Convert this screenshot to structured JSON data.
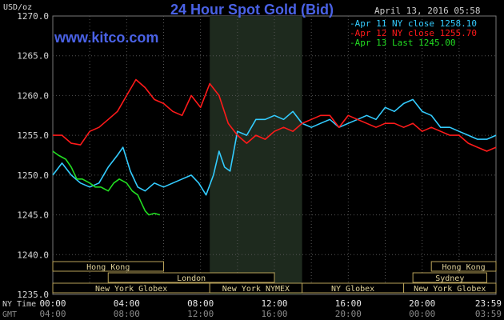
{
  "header": {
    "title": "24 Hour Spot Gold (Bid)",
    "timestamp": "April 13, 2016 05:58",
    "brand": "www.kitco.com",
    "unit": "USD/oz"
  },
  "legend": [
    {
      "text": "-Apr 11 NY close 1258.10",
      "color": "#33ccff"
    },
    {
      "text": "-Apr 12 NY close 1255.70",
      "color": "#ff1a1a"
    },
    {
      "text": "-Apr 13 Last 1245.00",
      "color": "#22dd22"
    }
  ],
  "sessions": {
    "row1": [
      {
        "label": "Hong Kong",
        "from": 0,
        "to": 6
      },
      {
        "label": "Hong Kong",
        "from": 20.5,
        "to": 24
      }
    ],
    "row2": [
      {
        "label": "London",
        "from": 3,
        "to": 12
      },
      {
        "label": "Sydney",
        "from": 19.5,
        "to": 23.5
      }
    ],
    "row3": [
      {
        "label": "New York Globex",
        "from": 0,
        "to": 8.5
      },
      {
        "label": "New York NYMEX",
        "from": 8.5,
        "to": 13.5
      },
      {
        "label": "NY Globex",
        "from": 13.5,
        "to": 19
      },
      {
        "label": "New York Globex",
        "from": 19,
        "to": 24
      }
    ]
  },
  "time_rows": {
    "ny_label": "NY Time",
    "gmt_label": "GMT",
    "ny_ticks": [
      "00:00",
      "04:00",
      "08:00",
      "12:00",
      "16:00",
      "20:00",
      "23:59"
    ],
    "gmt_ticks": [
      "04:00",
      "08:00",
      "12:00",
      "16:00",
      "20:00",
      "00:00",
      "03:59"
    ]
  },
  "chart_data": {
    "type": "line",
    "title": "24 Hour Spot Gold (Bid)",
    "xlabel": "NY Time",
    "ylabel": "USD/oz",
    "ylim": [
      1235,
      1270
    ],
    "xlim": [
      0,
      24
    ],
    "yticks": [
      1235,
      1240,
      1245,
      1250,
      1255,
      1260,
      1265,
      1270
    ],
    "ytick_labels": [
      "1235.0",
      "1240.0",
      "1245.0",
      "1250.0",
      "1255.0",
      "1260.0",
      "1265.0",
      "1270.0"
    ],
    "shaded_x_range": [
      8.5,
      13.5
    ],
    "grid": true,
    "series": [
      {
        "name": "Apr 11",
        "color": "#33ccff",
        "x": [
          0,
          0.5,
          1,
          1.5,
          2,
          2.5,
          3,
          3.5,
          3.8,
          4.2,
          4.6,
          5,
          5.5,
          6,
          6.5,
          7,
          7.5,
          7.9,
          8.3,
          8.7,
          9,
          9.3,
          9.6,
          10,
          10.5,
          11,
          11.5,
          12,
          12.5,
          13,
          13.5,
          14,
          14.5,
          15,
          15.5,
          16,
          16.5,
          17,
          17.5,
          18,
          18.5,
          19,
          19.5,
          20,
          20.5,
          21,
          21.5,
          22,
          22.5,
          23,
          23.5,
          24
        ],
        "y": [
          1250.0,
          1251.5,
          1250.0,
          1249.0,
          1248.5,
          1249.0,
          1251.0,
          1252.5,
          1253.5,
          1250.5,
          1248.5,
          1248.0,
          1249.0,
          1248.5,
          1249.0,
          1249.5,
          1250.0,
          1249.0,
          1247.5,
          1250.0,
          1253.0,
          1251.0,
          1250.5,
          1255.5,
          1255.0,
          1257.0,
          1257.0,
          1257.5,
          1257.0,
          1258.0,
          1256.5,
          1256.0,
          1256.5,
          1257.0,
          1256.0,
          1256.5,
          1257.0,
          1257.5,
          1257.0,
          1258.5,
          1258.0,
          1259.0,
          1259.5,
          1258.0,
          1257.5,
          1256.0,
          1256.0,
          1255.5,
          1255.0,
          1254.5,
          1254.5,
          1255.0
        ]
      },
      {
        "name": "Apr 12",
        "color": "#ff1a1a",
        "x": [
          0,
          0.5,
          1,
          1.5,
          2,
          2.5,
          3,
          3.5,
          4,
          4.5,
          5,
          5.5,
          6,
          6.5,
          7,
          7.5,
          8,
          8.5,
          9,
          9.5,
          10,
          10.5,
          11,
          11.5,
          12,
          12.5,
          13,
          13.5,
          14,
          14.5,
          15,
          15.5,
          16,
          16.5,
          17,
          17.5,
          18,
          18.5,
          19,
          19.5,
          20,
          20.5,
          21,
          21.5,
          22,
          22.5,
          23,
          23.5,
          24
        ],
        "y": [
          1255.0,
          1255.0,
          1254.0,
          1253.8,
          1255.5,
          1256.0,
          1257.0,
          1258.0,
          1260.0,
          1262.0,
          1261.0,
          1259.5,
          1259.0,
          1258.0,
          1257.5,
          1260.0,
          1258.5,
          1261.5,
          1260.0,
          1256.5,
          1255.0,
          1254.0,
          1255.0,
          1254.5,
          1255.5,
          1256.0,
          1255.5,
          1256.5,
          1257.0,
          1257.5,
          1257.5,
          1256.0,
          1257.5,
          1257.0,
          1256.5,
          1256.0,
          1256.5,
          1256.5,
          1256.0,
          1256.5,
          1255.5,
          1256.0,
          1255.5,
          1255.0,
          1255.0,
          1254.0,
          1253.5,
          1253.0,
          1253.5
        ]
      },
      {
        "name": "Apr 13",
        "color": "#22dd22",
        "x": [
          0,
          0.3,
          0.7,
          1,
          1.3,
          1.6,
          2,
          2.3,
          2.6,
          3,
          3.3,
          3.6,
          4,
          4.3,
          4.6,
          4.8,
          5,
          5.2,
          5.5,
          5.8
        ],
        "y": [
          1253.0,
          1252.5,
          1252.0,
          1251.0,
          1249.5,
          1249.5,
          1249.0,
          1248.5,
          1248.5,
          1248.0,
          1249.0,
          1249.5,
          1249.0,
          1248.0,
          1247.5,
          1246.5,
          1245.5,
          1245.0,
          1245.2,
          1245.0
        ]
      }
    ]
  }
}
